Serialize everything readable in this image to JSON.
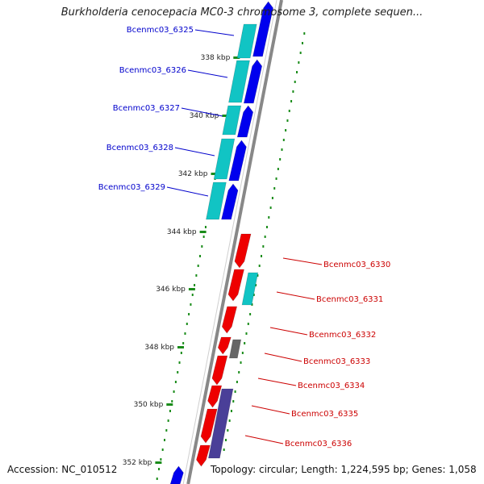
{
  "map": {
    "title": "Burkholderia cenocepacia MC0-3 chromosome 3, complete sequen...",
    "accession_label": "Accession: NC_010512",
    "topology_label": "Topology: circular; Length: 1,224,595 bp; Genes: 1,058"
  },
  "colors": {
    "forward_cds": "#0000ee",
    "reverse_cds": "#ee0000",
    "cyan_feature": "#11c4c4",
    "gray_feature": "#666666",
    "slate_feature": "#4a3f98",
    "backbone": "#888888",
    "tick": "#1a8c1a",
    "label_blue": "#0000cc",
    "label_red": "#cc0000"
  },
  "ticks": [
    {
      "label": "338 kbp"
    },
    {
      "label": "340 kbp"
    },
    {
      "label": "342 kbp"
    },
    {
      "label": "344 kbp"
    },
    {
      "label": "346 kbp"
    },
    {
      "label": "348 kbp"
    },
    {
      "label": "350 kbp"
    },
    {
      "label": "352 kbp"
    }
  ],
  "genes": [
    {
      "name": "Bcenmc03_6325",
      "strand": "forward"
    },
    {
      "name": "Bcenmc03_6326",
      "strand": "forward"
    },
    {
      "name": "Bcenmc03_6327",
      "strand": "forward"
    },
    {
      "name": "Bcenmc03_6328",
      "strand": "forward"
    },
    {
      "name": "Bcenmc03_6329",
      "strand": "forward"
    },
    {
      "name": "Bcenmc03_6330",
      "strand": "reverse"
    },
    {
      "name": "Bcenmc03_6331",
      "strand": "reverse"
    },
    {
      "name": "Bcenmc03_6332",
      "strand": "reverse"
    },
    {
      "name": "Bcenmc03_6333",
      "strand": "reverse"
    },
    {
      "name": "Bcenmc03_6334",
      "strand": "reverse"
    },
    {
      "name": "Bcenmc03_6335",
      "strand": "reverse"
    },
    {
      "name": "Bcenmc03_6336",
      "strand": "reverse"
    }
  ]
}
